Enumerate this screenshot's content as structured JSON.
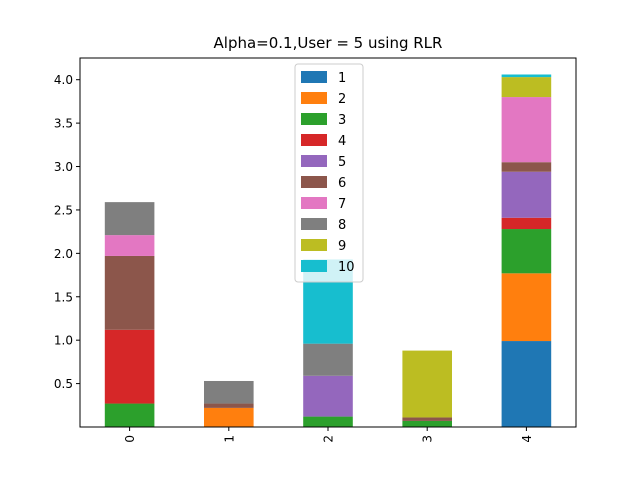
{
  "chart_data": {
    "type": "bar",
    "stacked": true,
    "title": "Alpha=0.1,User = 5 using RLR",
    "xlabel": "",
    "ylabel": "",
    "categories": [
      "0",
      "1",
      "2",
      "3",
      "4"
    ],
    "ylim": [
      0.0,
      4.25
    ],
    "yticks": [
      0.5,
      1.0,
      1.5,
      2.0,
      2.5,
      3.0,
      3.5,
      4.0
    ],
    "ytick_labels": [
      "0.5",
      "1.0",
      "1.5",
      "2.0",
      "2.5",
      "3.0",
      "3.5",
      "4.0"
    ],
    "grid": false,
    "legend_position": "top-center",
    "series": [
      {
        "name": "1",
        "color": "#1f77b4",
        "values": [
          0.0,
          0.0,
          0.0,
          0.0,
          0.99
        ]
      },
      {
        "name": "2",
        "color": "#ff7f0e",
        "values": [
          0.0,
          0.22,
          0.0,
          0.0,
          0.78
        ]
      },
      {
        "name": "3",
        "color": "#2ca02c",
        "values": [
          0.27,
          0.0,
          0.12,
          0.07,
          0.51
        ]
      },
      {
        "name": "4",
        "color": "#d62728",
        "values": [
          0.85,
          0.0,
          0.0,
          0.0,
          0.13
        ]
      },
      {
        "name": "5",
        "color": "#9467bd",
        "values": [
          0.0,
          0.0,
          0.47,
          0.0,
          0.53
        ]
      },
      {
        "name": "6",
        "color": "#8c564b",
        "values": [
          0.85,
          0.05,
          0.0,
          0.04,
          0.11
        ]
      },
      {
        "name": "7",
        "color": "#e377c2",
        "values": [
          0.24,
          0.0,
          0.0,
          0.0,
          0.75
        ]
      },
      {
        "name": "8",
        "color": "#7f7f7f",
        "values": [
          0.38,
          0.26,
          0.37,
          0.0,
          0.0
        ]
      },
      {
        "name": "9",
        "color": "#bcbd22",
        "values": [
          0.0,
          0.0,
          0.0,
          0.77,
          0.23
        ]
      },
      {
        "name": "10",
        "color": "#17becf",
        "values": [
          0.0,
          0.0,
          0.97,
          0.0,
          0.03
        ]
      }
    ]
  }
}
